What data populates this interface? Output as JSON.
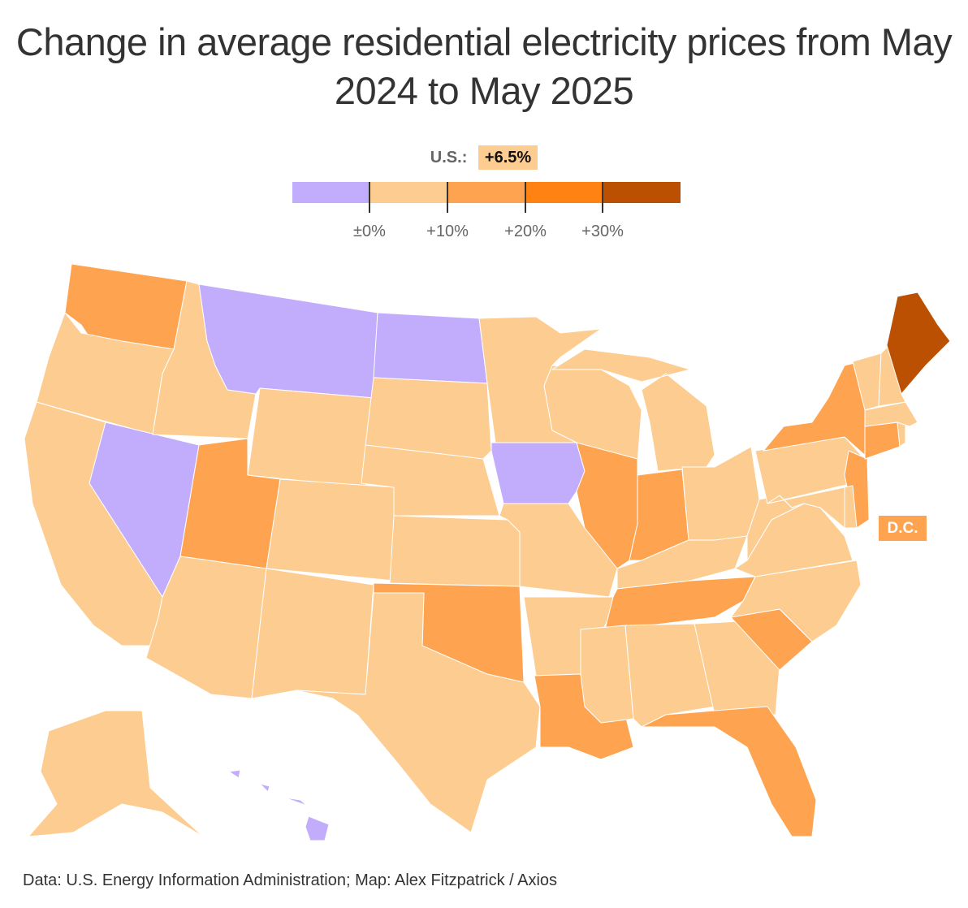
{
  "title": "Change in average residential electricity prices from May 2024 to May 2025",
  "us_summary": {
    "label": "U.S.:",
    "value": "+6.5%"
  },
  "legend": {
    "bins": [
      {
        "range": "below 0%",
        "color": "#c2adfc"
      },
      {
        "range": "0% to 10%",
        "color": "#fdcc90"
      },
      {
        "range": "10% to 20%",
        "color": "#fea34f"
      },
      {
        "range": "20% to 30%",
        "color": "#ff8213"
      },
      {
        "range": "30% and above",
        "color": "#bb5002"
      }
    ],
    "ticks": [
      "±0%",
      "+10%",
      "+20%",
      "+30%"
    ]
  },
  "chart_data": {
    "type": "choropleth",
    "title": "Change in average residential electricity prices from May 2024 to May 2025",
    "national_value": "+6.5%",
    "states": {
      "WA": 2,
      "OR": 1,
      "CA": 1,
      "NV": 0,
      "ID": 1,
      "MT": 0,
      "WY": 1,
      "UT": 2,
      "AZ": 1,
      "CO": 1,
      "NM": 1,
      "ND": 0,
      "SD": 1,
      "NE": 1,
      "KS": 1,
      "OK": 2,
      "TX": 1,
      "MN": 1,
      "IA": 0,
      "MO": 1,
      "AR": 1,
      "LA": 2,
      "WI": 1,
      "IL": 2,
      "MI": 1,
      "IN": 2,
      "OH": 1,
      "KY": 1,
      "TN": 2,
      "MS": 1,
      "AL": 1,
      "GA": 1,
      "FL": 2,
      "SC": 2,
      "NC": 1,
      "VA": 1,
      "WV": 1,
      "PA": 1,
      "NY": 2,
      "NJ": 2,
      "MD": 1,
      "DE": 1,
      "CT": 2,
      "RI": 1,
      "MA": 1,
      "VT": 1,
      "NH": 1,
      "ME": 4,
      "AK": 1,
      "HI": 0,
      "DC": 2
    }
  },
  "dc_label": "D.C.",
  "footer": "Data: U.S. Energy Information Administration; Map: Alex Fitzpatrick / Axios"
}
